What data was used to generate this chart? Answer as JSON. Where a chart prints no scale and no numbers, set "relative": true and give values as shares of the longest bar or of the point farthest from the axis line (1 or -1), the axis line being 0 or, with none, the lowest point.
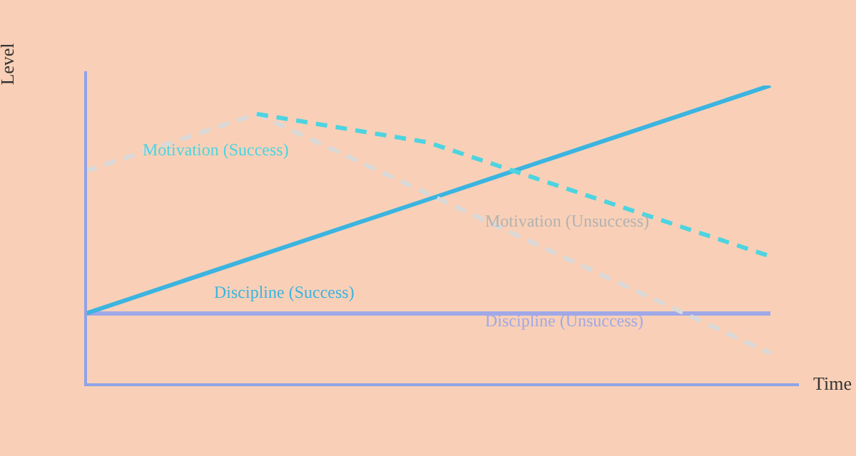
{
  "chart_data": {
    "type": "line",
    "relative": true,
    "xlabel": "Time",
    "ylabel": "Level",
    "categories": [
      null,
      null,
      null,
      null,
      null
    ],
    "legend": false,
    "grid": false,
    "marker": "none",
    "series": [
      {
        "name": "Motivation (Success)",
        "color": "#4dd4e0",
        "line_style": "dashed",
        "values": [
          null,
          0.905,
          0.81,
          0.619,
          0.429
        ]
      },
      {
        "name": "Motivation (Unsuccess)",
        "color": "#d9d9d9",
        "line_style": "dashed",
        "values": [
          0.714,
          0.905,
          0.638,
          0.371,
          0.105
        ]
      },
      {
        "name": "Discipline (Success)",
        "color": "#3cb4e0",
        "line_style": "solid",
        "values": [
          0.238,
          0.429,
          0.619,
          0.81,
          1
        ]
      },
      {
        "name": "Discipline (Unsuccess)",
        "color": "#a0a8e8",
        "line_style": "solid",
        "values": [
          0.238,
          0.238,
          0.238,
          0.238,
          0.238
        ]
      }
    ]
  }
}
